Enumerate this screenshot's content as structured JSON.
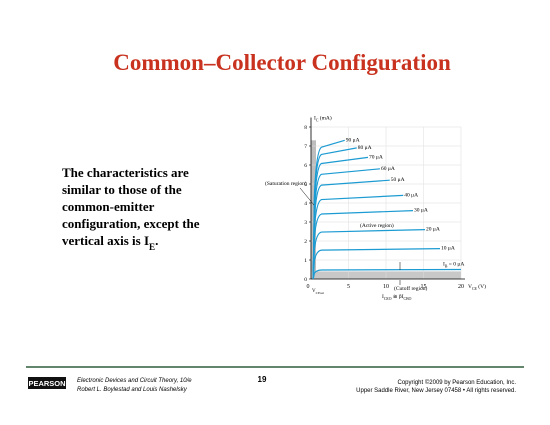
{
  "header": {
    "title": "Common–Collector Configuration"
  },
  "body": {
    "lines": [
      "The characteristics are",
      "similar to those of the",
      "common-emitter",
      "configuration, except the"
    ],
    "last": {
      "main": "vertical axis is I",
      "sub": "E",
      "rest": "."
    }
  },
  "figure": {
    "y_label": {
      "main": "I",
      "sub": "C",
      "rest": " (mA)"
    },
    "x_label": {
      "main": "V",
      "sub": "CE",
      "rest": " (V)"
    },
    "sat_label": {
      "main": "V",
      "sub": "CEsat"
    },
    "ceo_label": {
      "main": "I",
      "sub": "CEO",
      "mid": " ≅ βI",
      "sub2": "CBO"
    },
    "regions": [
      "(Saturation region)",
      "(Active region)",
      "(Cutoff region)"
    ],
    "xlim": [
      0,
      20
    ],
    "ylim": [
      0,
      8
    ],
    "xticks": [
      0,
      5,
      10,
      15,
      20
    ],
    "yticks": [
      0,
      1,
      2,
      3,
      4,
      5,
      6,
      7,
      8
    ],
    "curves": [
      {
        "label": "90 μA",
        "level": 7.3,
        "end_x": 4.5
      },
      {
        "label": "80 μA",
        "level": 6.9,
        "end_x": 6.1
      },
      {
        "label": "70 μA",
        "level": 6.4,
        "end_x": 7.6
      },
      {
        "label": "60 μA",
        "level": 5.8,
        "end_x": 9.2
      },
      {
        "label": "50 μA",
        "level": 5.2,
        "end_x": 10.5
      },
      {
        "label": "40 μA",
        "level": 4.4,
        "end_x": 12.3
      },
      {
        "label": "30 μA",
        "level": 3.6,
        "end_x": 13.6
      },
      {
        "label": "20 μA",
        "level": 2.6,
        "end_x": 15.2
      },
      {
        "label": "10 μA",
        "level": 1.6,
        "end_x": 17.2
      }
    ],
    "zero_curve": {
      "main": "I",
      "sub": "B",
      "rest": " = 0 μA",
      "level": 0.5,
      "end_x": 20
    }
  },
  "footer": {
    "logo": "PEARSON",
    "book": "Electronic Devices and Circuit Theory, 10/e",
    "authors": "Robert L. Boylestad and Louis Nashelsky",
    "page": "19",
    "copyright": "Copyright ©2009 by Pearson Education, Inc.",
    "address": "Upper Saddle River, New Jersey 07458 • All rights reserved."
  }
}
